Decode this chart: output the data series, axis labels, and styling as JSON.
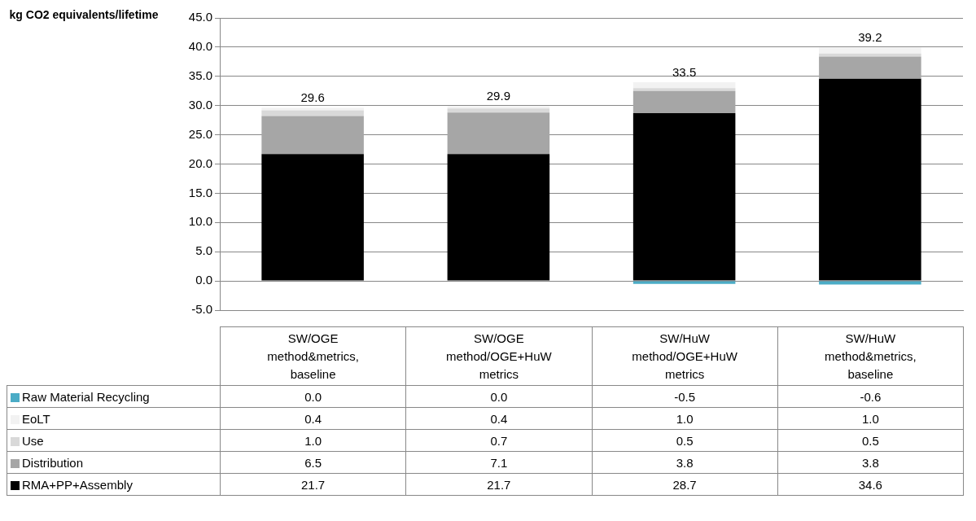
{
  "chart_data": {
    "type": "bar",
    "ylabel": "kg CO2 equivalents/lifetime",
    "stacked": true,
    "categories": [
      "SW/OGE method&metrics, baseline",
      "SW/OGE method/OGE+HuW metrics",
      "SW/HuW method/OGE+HuW metrics",
      "SW/HuW method&metrics, baseline"
    ],
    "series": [
      {
        "name": "RMA+PP+Assembly",
        "color": "#000000",
        "values": [
          21.7,
          21.7,
          28.7,
          34.6
        ],
        "value_labels": [
          "21.7",
          "21.7",
          "28.7",
          "34.6"
        ]
      },
      {
        "name": "Distribution",
        "color": "#a6a6a6",
        "values": [
          6.5,
          7.1,
          3.8,
          3.8
        ],
        "value_labels": [
          "6.5",
          "7.1",
          "3.8",
          "3.8"
        ]
      },
      {
        "name": "Use",
        "color": "#d9d9d9",
        "values": [
          1.0,
          0.7,
          0.5,
          0.5
        ],
        "value_labels": [
          "1.0",
          "0.7",
          "0.5",
          "0.5"
        ]
      },
      {
        "name": "EoLT",
        "color": "#f2f2f2",
        "values": [
          0.4,
          0.4,
          1.0,
          1.0
        ],
        "value_labels": [
          "0.4",
          "0.4",
          "1.0",
          "1.0"
        ]
      },
      {
        "name": "Raw Material Recycling",
        "color": "#4bacc6",
        "values": [
          0.0,
          0.0,
          -0.5,
          -0.6
        ],
        "value_labels": [
          "0.0",
          "0.0",
          "-0.5",
          "-0.6"
        ]
      }
    ],
    "totals": [
      "29.6",
      "29.9",
      "33.5",
      "39.2"
    ],
    "ylim": [
      -5,
      45
    ],
    "yticks": [
      {
        "value": -5,
        "label": "-5.0"
      },
      {
        "value": 0,
        "label": "0.0"
      },
      {
        "value": 5,
        "label": "5.0"
      },
      {
        "value": 10,
        "label": "10.0"
      },
      {
        "value": 15,
        "label": "15.0"
      },
      {
        "value": 20,
        "label": "20.0"
      },
      {
        "value": 25,
        "label": "25.0"
      },
      {
        "value": 30,
        "label": "30.0"
      },
      {
        "value": 35,
        "label": "35.0"
      },
      {
        "value": 40,
        "label": "40.0"
      },
      {
        "value": 45,
        "label": "45.0"
      }
    ],
    "grid": "y",
    "legend": "bottom"
  }
}
